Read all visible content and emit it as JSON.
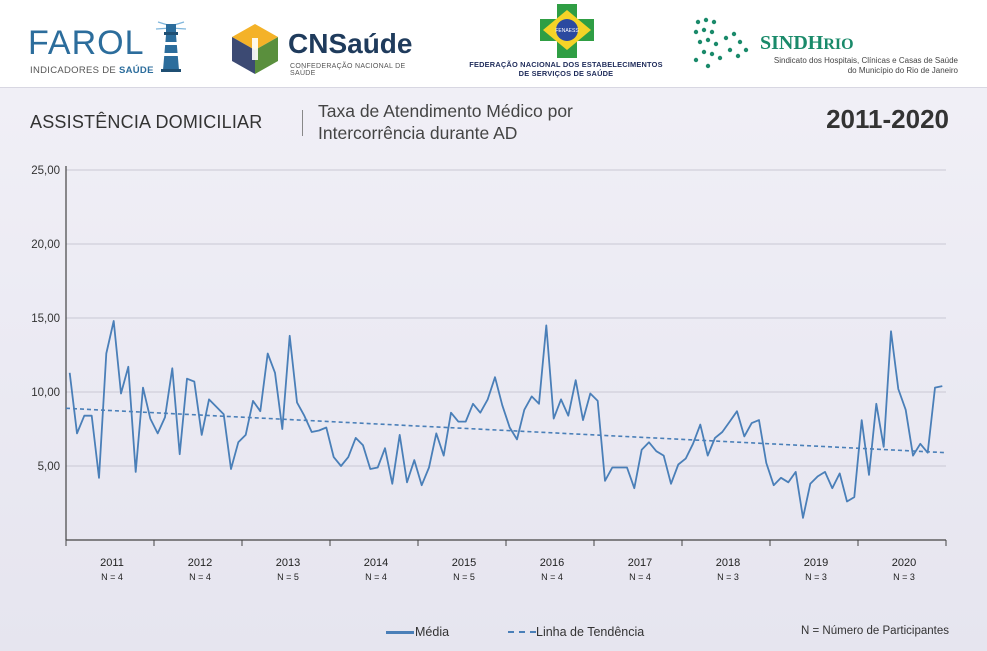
{
  "header": {
    "farol": {
      "word": "FAROL",
      "sub_a": "INDICADORES DE ",
      "sub_b": "SAÚDE"
    },
    "cns": {
      "word": "CNSaúde",
      "sub": "CONFEDERAÇÃO NACIONAL DE SAÚDE"
    },
    "fenaess": {
      "badge": "FENAESS",
      "line1": "FEDERAÇÃO NACIONAL DOS ESTABELECIMENTOS",
      "line2": "DE SERVIÇOS DE SAÚDE"
    },
    "sindh": {
      "word_a": "SINDH",
      "word_b": "RIO",
      "line1": "Sindicato dos Hospitais, Clínicas e Casas de Saúde",
      "line2": "do Município do Rio de Janeiro"
    }
  },
  "section_label": "ASSISTÊNCIA DOMICILIAR",
  "subtitle_line1": "Taxa de Atendimento Médico por",
  "subtitle_line2": "Intercorrência durante AD",
  "period": "2011-2020",
  "legend": {
    "media": "Média",
    "trend": "Linha de Tendência",
    "n_note": "N = Número de Participantes"
  },
  "colors": {
    "line": "#4a7fb8",
    "grid": "#c9c8d4",
    "axis": "#444444"
  },
  "chart_data": {
    "type": "line",
    "ylim": [
      0,
      25
    ],
    "ytick_labels": [
      "25,00",
      "20,00",
      "15,00",
      "10,00",
      "5,00"
    ],
    "yticks": [
      25,
      20,
      15,
      10,
      5
    ],
    "grid": true,
    "year_groups": [
      {
        "year": "2011",
        "n": "N = 4"
      },
      {
        "year": "2012",
        "n": "N = 4"
      },
      {
        "year": "2013",
        "n": "N = 5"
      },
      {
        "year": "2014",
        "n": "N = 4"
      },
      {
        "year": "2015",
        "n": "N = 5"
      },
      {
        "year": "2016",
        "n": "N = 4"
      },
      {
        "year": "2017",
        "n": "N = 4"
      },
      {
        "year": "2018",
        "n": "N = 3"
      },
      {
        "year": "2019",
        "n": "N = 3"
      },
      {
        "year": "2020",
        "n": "N = 3"
      }
    ],
    "series": [
      {
        "name": "Média",
        "style": "solid",
        "values": [
          11.3,
          7.2,
          8.4,
          8.4,
          4.2,
          12.6,
          14.8,
          9.9,
          11.7,
          4.6,
          10.3,
          8.2,
          7.2,
          8.3,
          11.6,
          5.8,
          10.9,
          10.7,
          7.1,
          9.5,
          9.0,
          8.5,
          4.8,
          6.6,
          7.1,
          9.4,
          8.7,
          12.6,
          11.3,
          7.5,
          13.8,
          9.3,
          8.4,
          7.3,
          7.4,
          7.6,
          5.6,
          5.0,
          5.6,
          6.9,
          6.4,
          4.8,
          4.9,
          6.2,
          3.8,
          7.1,
          3.9,
          5.4,
          3.7,
          4.9,
          7.2,
          5.7,
          8.6,
          8.0,
          8.0,
          9.2,
          8.6,
          9.5,
          11.0,
          9.1,
          7.6,
          6.8,
          8.8,
          9.7,
          9.2,
          14.5,
          8.2,
          9.5,
          8.4,
          10.8,
          8.1,
          9.9,
          9.4,
          4.0,
          4.9,
          4.9,
          4.9,
          3.5,
          6.1,
          6.6,
          6.0,
          5.7,
          3.8,
          5.1,
          5.5,
          6.5,
          7.8,
          5.7,
          6.9,
          7.3,
          8.0,
          8.7,
          7.0,
          7.9,
          8.1,
          5.2,
          3.7,
          4.2,
          3.9,
          4.6,
          1.5,
          3.8,
          4.3,
          4.6,
          3.5,
          4.5,
          2.6,
          2.9,
          8.1,
          4.4,
          9.2,
          6.3,
          14.1,
          10.2,
          8.8,
          5.7,
          6.5,
          5.9,
          10.3,
          10.4
        ]
      },
      {
        "name": "Linha de Tendência",
        "style": "dashed",
        "values": [
          8.9,
          5.9
        ]
      }
    ]
  }
}
